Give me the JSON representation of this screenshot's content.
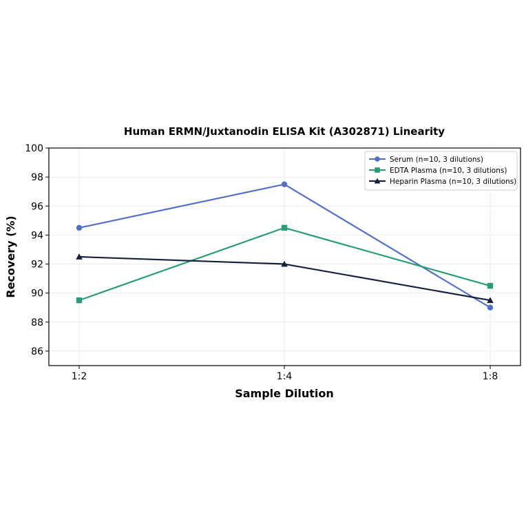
{
  "chart_data": {
    "type": "line",
    "title": "Human ERMN/Juxtanodin ELISA Kit (A302871) Linearity",
    "xlabel": "Sample Dilution",
    "ylabel": "Recovery (%)",
    "categories": [
      "1:2",
      "1:4",
      "1:8"
    ],
    "ylim": [
      85,
      100
    ],
    "yticks": [
      86,
      88,
      90,
      92,
      94,
      96,
      98,
      100
    ],
    "grid": true,
    "legend_position": "top-right",
    "series": [
      {
        "name": "Serum (n=10, 3 dilutions)",
        "values": [
          94.5,
          97.5,
          89.0
        ],
        "color": "#5470c6",
        "marker": "circle"
      },
      {
        "name": "EDTA Plasma (n=10, 3 dilutions)",
        "values": [
          89.5,
          94.5,
          90.5
        ],
        "color": "#2a9d78",
        "marker": "square"
      },
      {
        "name": "Heparin Plasma (n=10, 3 dilutions)",
        "values": [
          92.5,
          92.0,
          89.5
        ],
        "color": "#14213d",
        "marker": "triangle"
      }
    ]
  }
}
